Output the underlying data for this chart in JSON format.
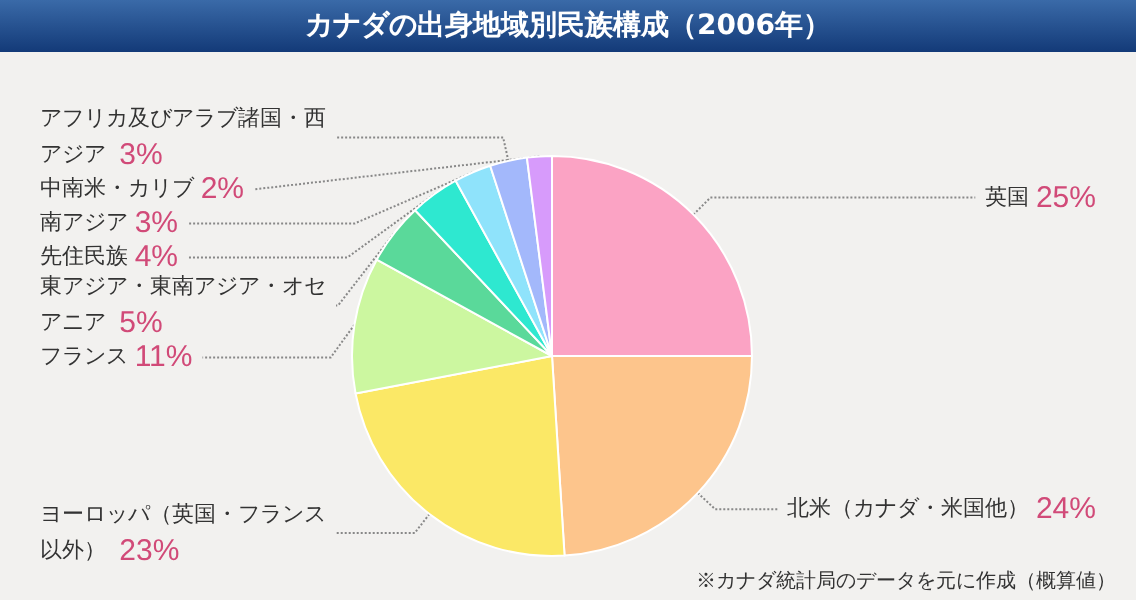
{
  "chart_data": {
    "type": "pie",
    "title": "カナダの出身地域別民族構成（2006年）",
    "categories": [
      "英国",
      "北米（カナダ・米国他）",
      "ヨーロッパ（英国・フランス以外）",
      "フランス",
      "東アジア・東南アジア・オセアニア",
      "先住民族",
      "南アジア",
      "アフリカ及びアラブ諸国・西アジア",
      "中南米・カリブ"
    ],
    "values": [
      25,
      24,
      23,
      11,
      5,
      4,
      3,
      3,
      2
    ],
    "value_labels": [
      "25%",
      "24%",
      "23%",
      "11%",
      "5%",
      "4%",
      "3%",
      "3%",
      "2%"
    ],
    "colors": [
      "#fba3c4",
      "#fdc58c",
      "#fbe866",
      "#ccf7a0",
      "#5ad99a",
      "#2ee8d0",
      "#8fe3fb",
      "#a3b8fb",
      "#d79bfb"
    ],
    "annotations": [
      "※カナダ統計局のデータを元に作成（概算値）"
    ]
  }
}
